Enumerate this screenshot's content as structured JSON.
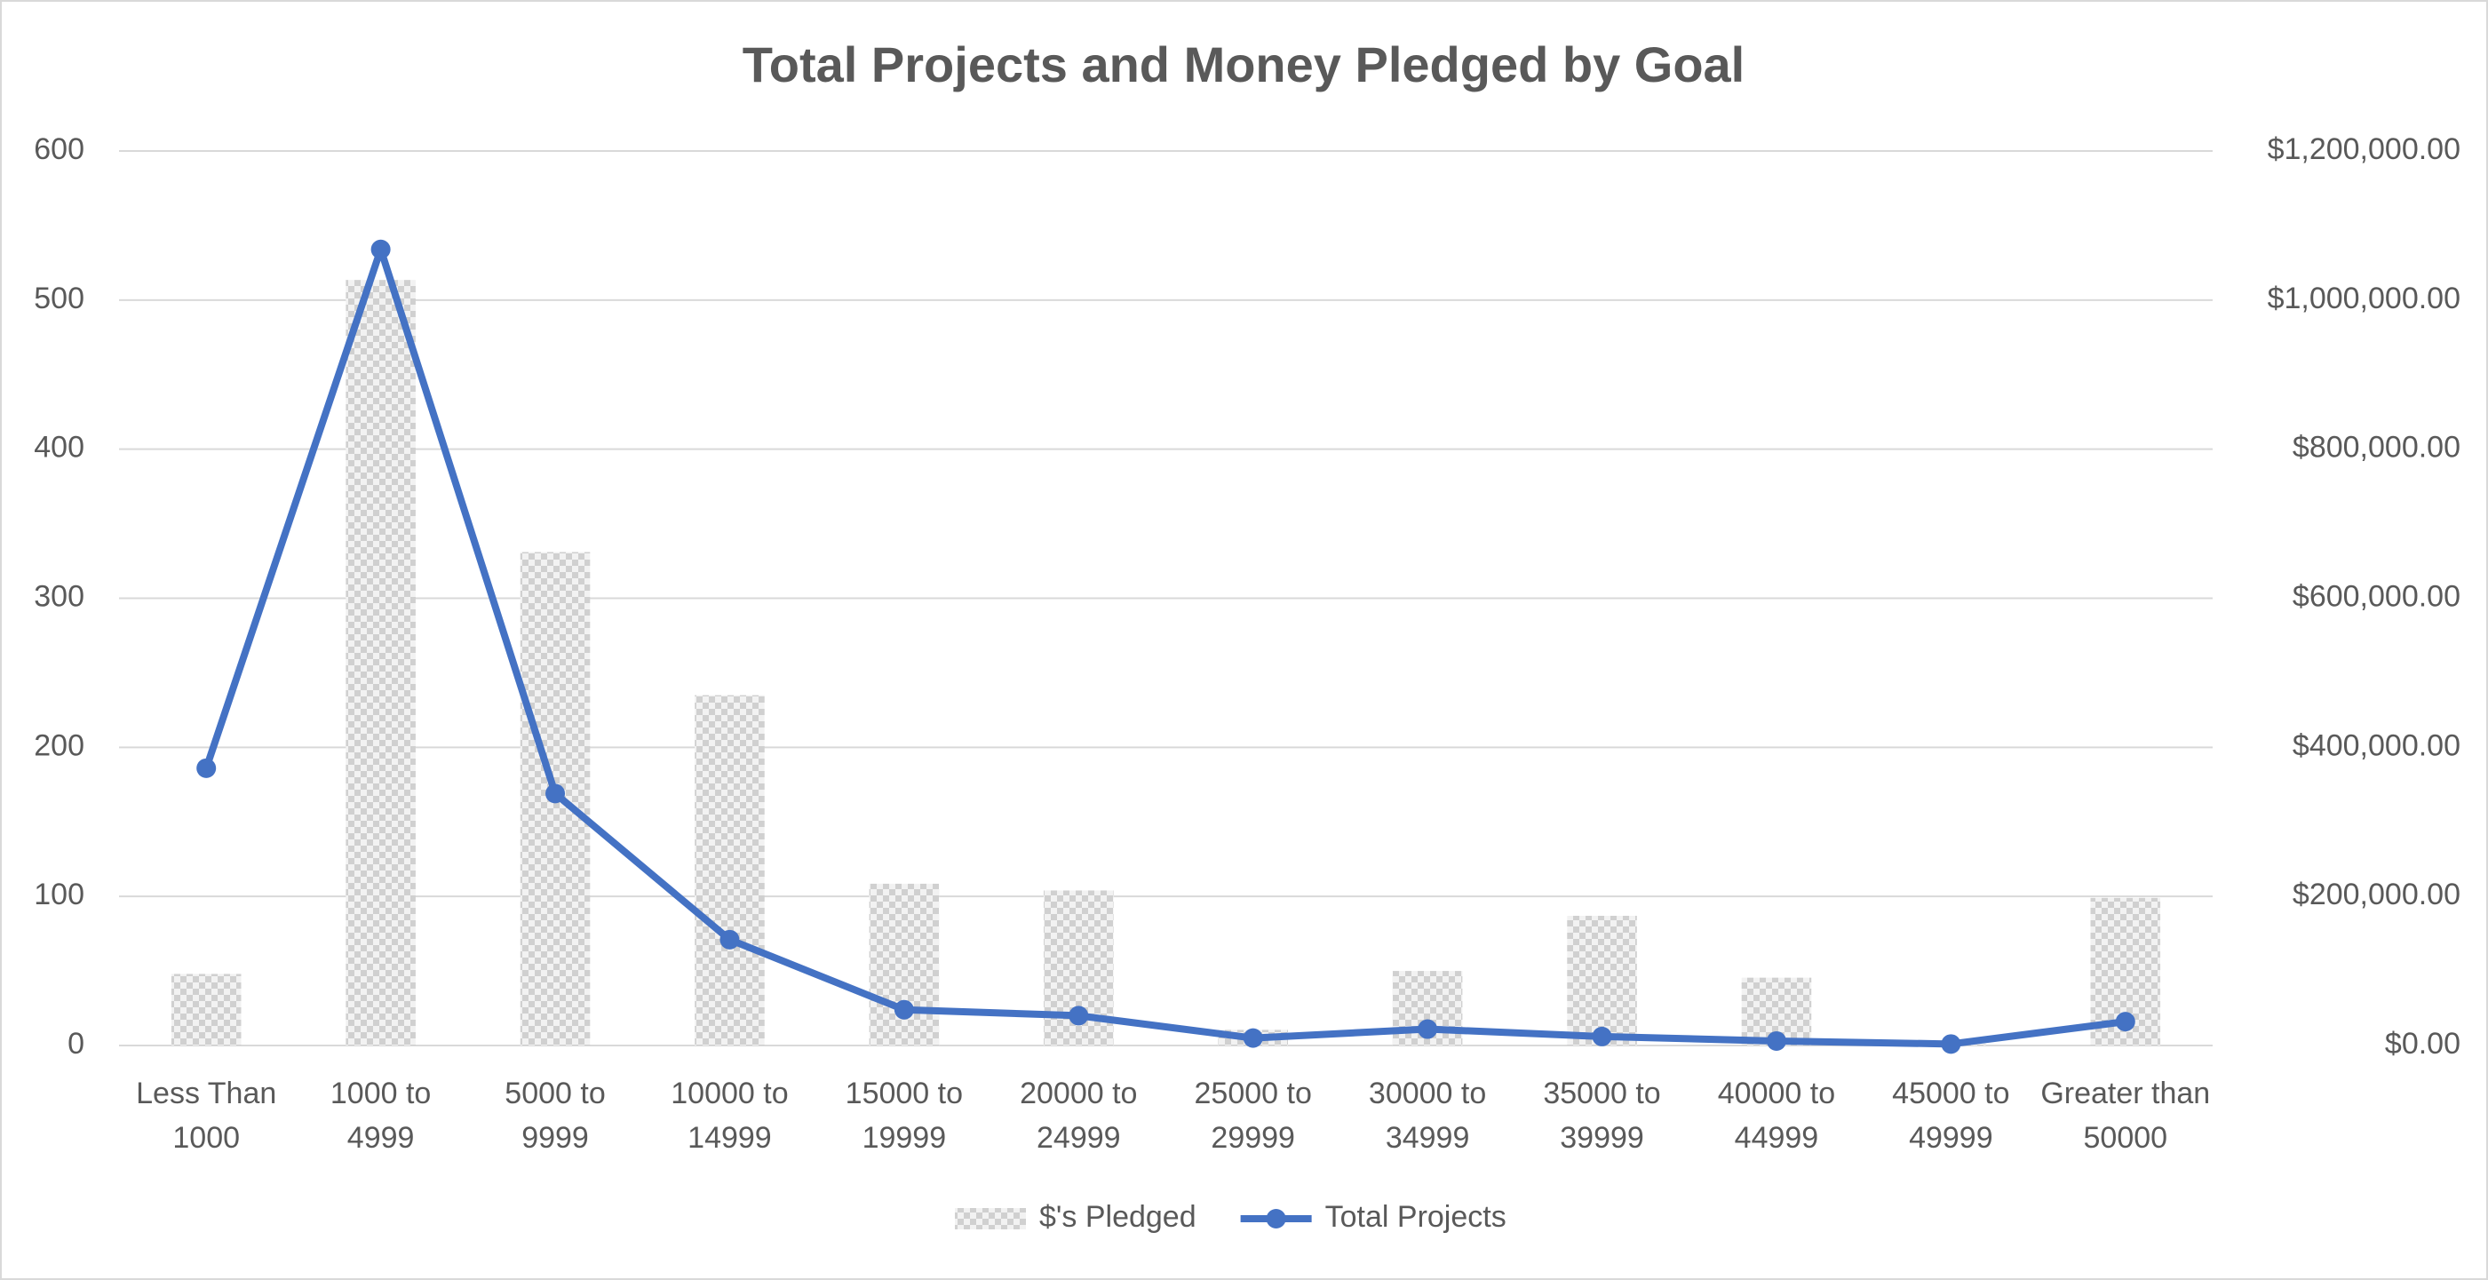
{
  "chart_data": {
    "type": "bar_line",
    "title": "Total Projects and Money Pledged by Goal",
    "categories": [
      "Less Than 1000",
      "1000 to 4999",
      "5000 to 9999",
      "10000 to 14999",
      "15000 to 19999",
      "20000 to 24999",
      "25000 to 29999",
      "30000 to 34999",
      "35000 to 39999",
      "40000 to 44999",
      "45000 to 49999",
      "Greater than 50000"
    ],
    "series": [
      {
        "name": "$'s Pledged",
        "type": "bar",
        "axis": "y2",
        "color": "#d9d9d9",
        "values": [
          96000,
          1027000,
          662000,
          470000,
          217000,
          208000,
          21000,
          100000,
          174000,
          91000,
          2000,
          198000
        ]
      },
      {
        "name": "Total Projects",
        "type": "line",
        "color": "#4472c4",
        "values": [
          186,
          534,
          169,
          71,
          24,
          20,
          5,
          11,
          6,
          3,
          1,
          16
        ]
      }
    ],
    "ylim": [
      0,
      600
    ],
    "yticks": [
      0,
      100,
      200,
      300,
      400,
      500,
      600
    ],
    "y2lim": [
      0,
      1200000
    ],
    "y2ticks": [
      {
        "value": 0,
        "label": "$0.00"
      },
      {
        "value": 200000,
        "label": "$200,000.00"
      },
      {
        "value": 400000,
        "label": "$400,000.00"
      },
      {
        "value": 600000,
        "label": "$600,000.00"
      },
      {
        "value": 800000,
        "label": "$800,000.00"
      },
      {
        "value": 1000000,
        "label": "$1,000,000.00"
      },
      {
        "value": 1200000,
        "label": "$1,200,000.00"
      }
    ],
    "grid": true,
    "legend": "bottom"
  }
}
